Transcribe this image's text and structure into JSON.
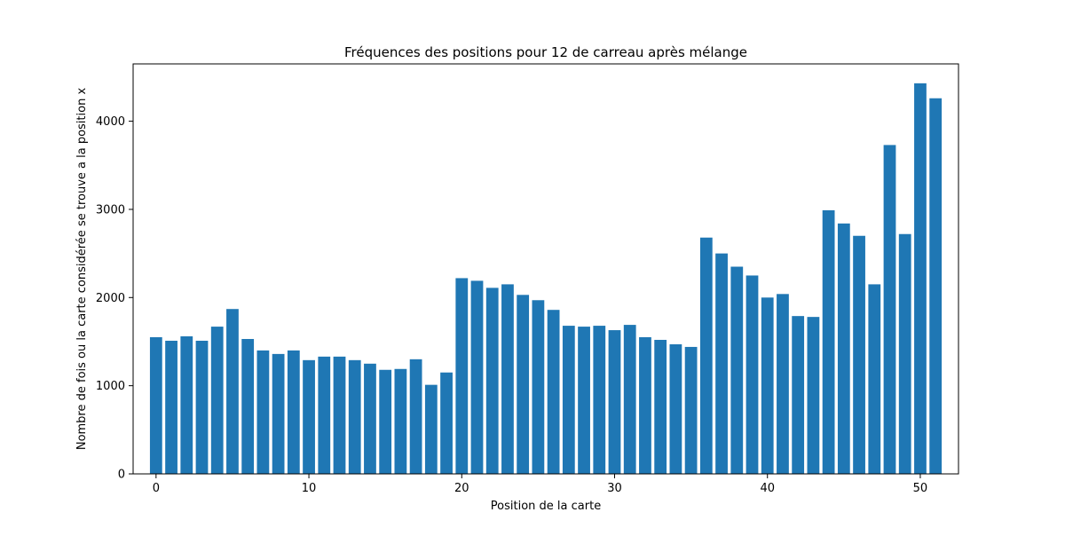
{
  "chart_data": {
    "type": "bar",
    "title": "Fréquences des positions pour 12 de carreau après mélange",
    "xlabel": "Position de la carte",
    "ylabel": "Nombre de fois ou la carte considérée se trouve a la position x",
    "x": [
      0,
      1,
      2,
      3,
      4,
      5,
      6,
      7,
      8,
      9,
      10,
      11,
      12,
      13,
      14,
      15,
      16,
      17,
      18,
      19,
      20,
      21,
      22,
      23,
      24,
      25,
      26,
      27,
      28,
      29,
      30,
      31,
      32,
      33,
      34,
      35,
      36,
      37,
      38,
      39,
      40,
      41,
      42,
      43,
      44,
      45,
      46,
      47,
      48,
      49,
      50,
      51
    ],
    "values": [
      1550,
      1510,
      1560,
      1510,
      1670,
      1870,
      1530,
      1400,
      1360,
      1400,
      1290,
      1330,
      1330,
      1290,
      1250,
      1180,
      1190,
      1300,
      1010,
      1150,
      2220,
      2190,
      2110,
      2150,
      2030,
      1970,
      1860,
      1680,
      1670,
      1680,
      1630,
      1690,
      1550,
      1520,
      1470,
      1440,
      2680,
      2500,
      2350,
      2250,
      2000,
      2040,
      1790,
      1780,
      2990,
      2840,
      2700,
      2150,
      3730,
      2720,
      4430,
      4260
    ],
    "xlim": [
      -1.5,
      52.5
    ],
    "ylim": [
      0,
      4650
    ],
    "xticks": [
      0,
      10,
      20,
      30,
      40,
      50
    ],
    "yticks": [
      0,
      1000,
      2000,
      3000,
      4000
    ],
    "bar_color": "#1f77b4",
    "grid": false
  }
}
